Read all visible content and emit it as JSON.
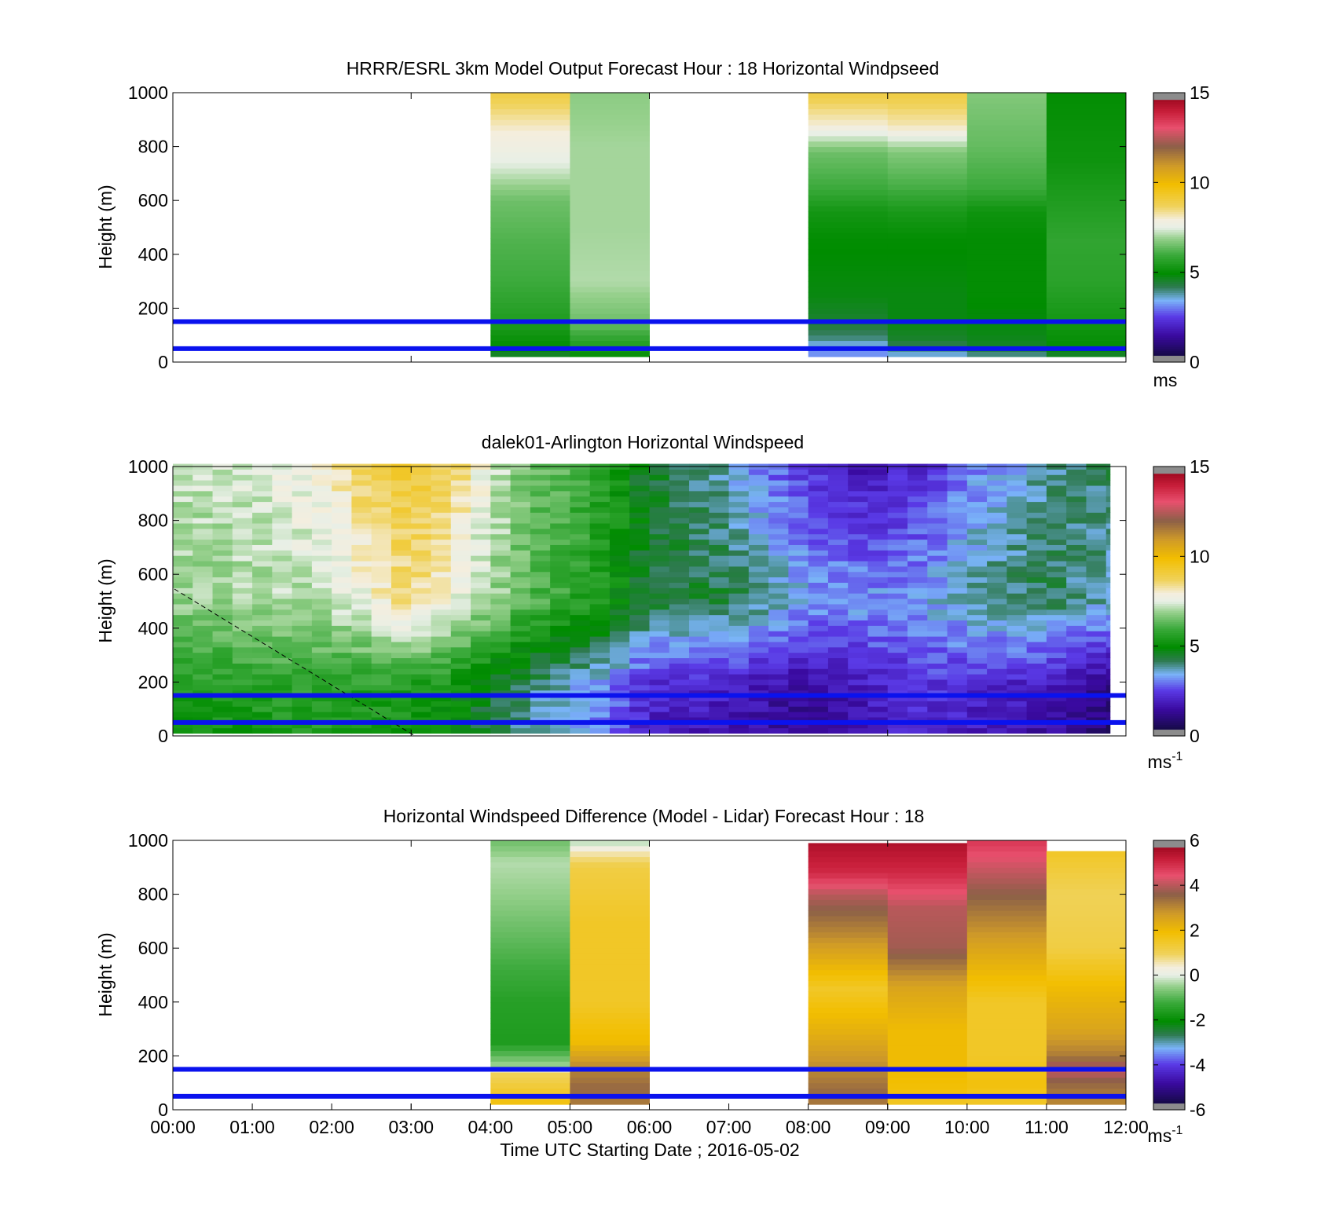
{
  "chart_data": [
    {
      "type": "heatmap",
      "title": "HRRR/ESRL 3km Model Output   Forecast Hour : 18 Horizontal Windpseed",
      "ylabel": "Height (m)",
      "ylim": [
        0,
        1000
      ],
      "yticks": [
        0,
        200,
        400,
        600,
        800,
        1000
      ],
      "xlim": [
        "00:00",
        "12:00"
      ],
      "colorbar": {
        "ticks": [
          0,
          5,
          10,
          15
        ],
        "range": [
          0,
          15
        ],
        "unit": "ms",
        "unit_sup": ""
      },
      "reference_lines_m": [
        50,
        150
      ],
      "reference_line_color": "#0a12ee",
      "column_hours": [
        {
          "start": 4,
          "end": 5,
          "top": 1000,
          "bottom": 20,
          "samples": [
            [
              1000,
              9
            ],
            [
              860,
              8
            ],
            [
              740,
              7.5
            ],
            [
              600,
              6.5
            ],
            [
              450,
              6.2
            ],
            [
              300,
              6
            ],
            [
              150,
              5.5
            ],
            [
              60,
              5
            ],
            [
              20,
              4.5
            ]
          ]
        },
        {
          "start": 5,
          "end": 6,
          "top": 1000,
          "bottom": 20,
          "samples": [
            [
              1000,
              6.8
            ],
            [
              800,
              7
            ],
            [
              500,
              7
            ],
            [
              300,
              7.1
            ],
            [
              150,
              6.5
            ],
            [
              60,
              5.5
            ],
            [
              20,
              5
            ]
          ]
        },
        {
          "start": 8,
          "end": 9,
          "top": 1000,
          "bottom": 20,
          "samples": [
            [
              1000,
              9
            ],
            [
              880,
              8
            ],
            [
              780,
              6.5
            ],
            [
              650,
              6
            ],
            [
              560,
              5.3
            ],
            [
              460,
              5
            ],
            [
              250,
              4.8
            ],
            [
              150,
              4.5
            ],
            [
              90,
              4
            ],
            [
              40,
              3
            ],
            [
              20,
              3.4
            ]
          ]
        },
        {
          "start": 9,
          "end": 10,
          "top": 1000,
          "bottom": 20,
          "samples": [
            [
              1000,
              9
            ],
            [
              880,
              8.2
            ],
            [
              780,
              6.7
            ],
            [
              650,
              6.1
            ],
            [
              560,
              5.4
            ],
            [
              460,
              5
            ],
            [
              250,
              4.8
            ],
            [
              150,
              4.8
            ],
            [
              80,
              4.5
            ],
            [
              40,
              3.8
            ],
            [
              20,
              3.4
            ]
          ]
        },
        {
          "start": 10,
          "end": 11,
          "top": 1000,
          "bottom": 20,
          "samples": [
            [
              1000,
              6.7
            ],
            [
              800,
              6.4
            ],
            [
              650,
              6
            ],
            [
              560,
              5.2
            ],
            [
              460,
              5
            ],
            [
              250,
              5
            ],
            [
              120,
              4.8
            ],
            [
              60,
              4.6
            ],
            [
              20,
              3.8
            ]
          ]
        },
        {
          "start": 11,
          "end": 12,
          "top": 1000,
          "bottom": 20,
          "samples": [
            [
              1000,
              5
            ],
            [
              750,
              5.2
            ],
            [
              600,
              5.5
            ],
            [
              450,
              5.8
            ],
            [
              300,
              5.7
            ],
            [
              150,
              5.3
            ],
            [
              60,
              5
            ],
            [
              20,
              4.5
            ]
          ]
        }
      ]
    },
    {
      "type": "heatmap",
      "title": "dalek01-Arlington  Horizontal Windspeed",
      "ylabel": "Height (m)",
      "ylim": [
        0,
        1000
      ],
      "yticks": [
        0,
        200,
        400,
        600,
        800,
        1000
      ],
      "xlim": [
        "00:00",
        "12:00"
      ],
      "colorbar": {
        "ticks": [
          0,
          5,
          10,
          15
        ],
        "range": [
          0,
          15
        ],
        "unit": "ms",
        "unit_sup": "-1"
      },
      "reference_lines_m": [
        50,
        150
      ],
      "reference_line_color": "#0a12ee",
      "time_step_hours": 0.25,
      "data_end_hour": 11.8,
      "column_profiles": [
        [
          0,
          7.2,
          6.8,
          5.5
        ],
        [
          1,
          7.4,
          7.0,
          5.6
        ],
        [
          2,
          8.0,
          7.2,
          5.8
        ],
        [
          2.5,
          9.0,
          7.8,
          5.6
        ],
        [
          3,
          9.2,
          8.5,
          5.5
        ],
        [
          3.5,
          8.7,
          7.8,
          5.2
        ],
        [
          4,
          7.5,
          7.0,
          4.5
        ],
        [
          4.5,
          6.5,
          6.2,
          4.0
        ],
        [
          5,
          6.2,
          5.8,
          3.6
        ],
        [
          5.5,
          5.6,
          5.2,
          3.2
        ],
        [
          6,
          4.5,
          4.4,
          2.2
        ],
        [
          7,
          3.6,
          4.4,
          2.0
        ],
        [
          8,
          2.4,
          3.4,
          1.4
        ],
        [
          8.5,
          1.8,
          3.4,
          1.8
        ],
        [
          9,
          2.0,
          3.2,
          2.2
        ],
        [
          9.5,
          2.3,
          3.4,
          2.4
        ],
        [
          10,
          3.0,
          3.8,
          2.2
        ],
        [
          11,
          3.8,
          4.3,
          1.8
        ],
        [
          11.8,
          4.2,
          3.6,
          1.2
        ]
      ]
    },
    {
      "type": "heatmap",
      "title": "Horizontal Windspeed Difference (Model - Lidar) Forecast Hour : 18",
      "ylabel": "Height (m)",
      "xlabel": "Time UTC  Starting Date ; 2016-05-02",
      "ylim": [
        0,
        1000
      ],
      "yticks": [
        0,
        200,
        400,
        600,
        800,
        1000
      ],
      "xlim": [
        "00:00",
        "12:00"
      ],
      "xticks": [
        "00:00",
        "01:00",
        "02:00",
        "03:00",
        "04:00",
        "05:00",
        "06:00",
        "07:00",
        "08:00",
        "09:00",
        "10:00",
        "11:00",
        "12:00"
      ],
      "colorbar": {
        "ticks": [
          -6,
          -4,
          -2,
          0,
          2,
          4,
          6
        ],
        "range": [
          -6,
          6
        ],
        "unit": "ms",
        "unit_sup": "-1"
      },
      "reference_lines_m": [
        50,
        150
      ],
      "reference_line_color": "#0a12ee",
      "column_hours": [
        {
          "start": 4,
          "end": 5,
          "top": 1000,
          "bottom": 20,
          "samples": [
            [
              1000,
              -0.8
            ],
            [
              920,
              -0.3
            ],
            [
              800,
              -0.5
            ],
            [
              600,
              -1.0
            ],
            [
              400,
              -1.5
            ],
            [
              250,
              -1.6
            ],
            [
              170,
              -0.5
            ],
            [
              130,
              1.0
            ],
            [
              60,
              1.5
            ],
            [
              20,
              1.8
            ]
          ]
        },
        {
          "start": 5,
          "end": 6,
          "top": 1000,
          "bottom": 20,
          "samples": [
            [
              1000,
              -0.4
            ],
            [
              960,
              0.5
            ],
            [
              900,
              1.2
            ],
            [
              700,
              1.5
            ],
            [
              400,
              1.5
            ],
            [
              250,
              2.0
            ],
            [
              160,
              3.0
            ],
            [
              80,
              3.5
            ],
            [
              20,
              3.2
            ]
          ]
        },
        {
          "start": 8,
          "end": 9,
          "top": 990,
          "bottom": 20,
          "samples": [
            [
              990,
              5.5
            ],
            [
              880,
              5.0
            ],
            [
              800,
              4.0
            ],
            [
              650,
              3.0
            ],
            [
              450,
              1.5
            ],
            [
              300,
              2.2
            ],
            [
              150,
              3.0
            ],
            [
              60,
              3.5
            ],
            [
              20,
              3.2
            ]
          ]
        },
        {
          "start": 9,
          "end": 10,
          "top": 990,
          "bottom": 20,
          "samples": [
            [
              990,
              5.5
            ],
            [
              880,
              5.0
            ],
            [
              750,
              4.0
            ],
            [
              600,
              3.8
            ],
            [
              450,
              2.5
            ],
            [
              300,
              2.0
            ],
            [
              150,
              2.0
            ],
            [
              60,
              1.8
            ],
            [
              20,
              1.5
            ]
          ]
        },
        {
          "start": 10,
          "end": 11,
          "top": 1000,
          "bottom": 20,
          "samples": [
            [
              1000,
              4.8
            ],
            [
              920,
              4.3
            ],
            [
              780,
              3.5
            ],
            [
              600,
              2.5
            ],
            [
              400,
              1.5
            ],
            [
              200,
              1.5
            ],
            [
              100,
              1.8
            ],
            [
              20,
              1.5
            ]
          ]
        },
        {
          "start": 11,
          "end": 12,
          "top": 960,
          "bottom": 20,
          "samples": [
            [
              960,
              1.5
            ],
            [
              800,
              1.0
            ],
            [
              600,
              1.2
            ],
            [
              450,
              2.0
            ],
            [
              300,
              2.5
            ],
            [
              200,
              3.2
            ],
            [
              150,
              4.2
            ],
            [
              100,
              3.5
            ],
            [
              20,
              3.0
            ]
          ]
        }
      ]
    }
  ]
}
